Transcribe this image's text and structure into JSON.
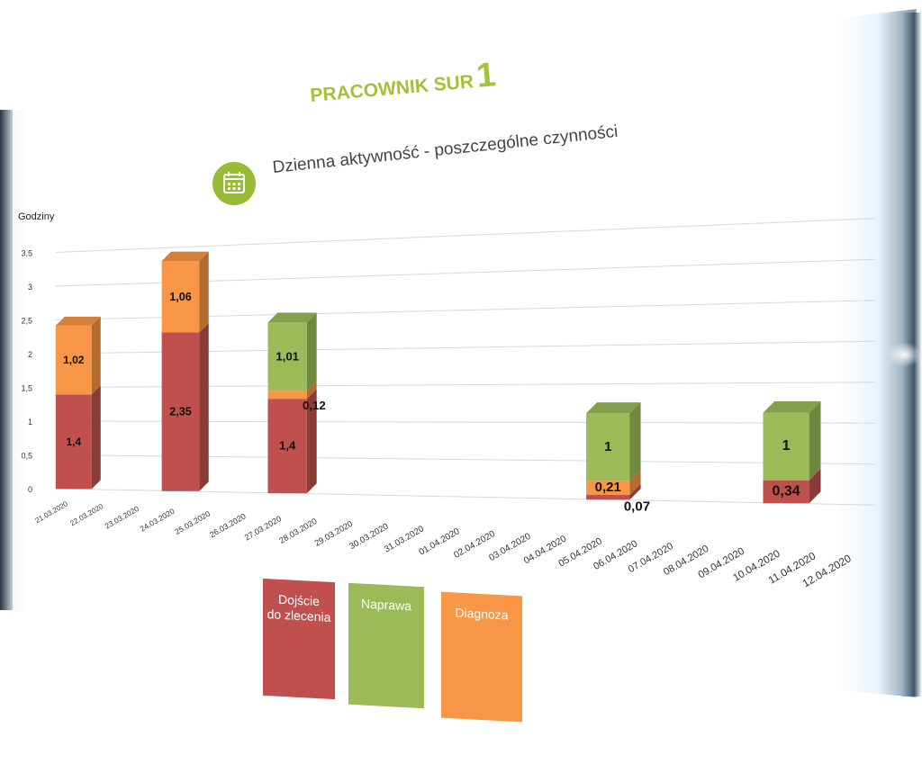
{
  "title": {
    "text": "PRACOWNIK SUR",
    "number": "1"
  },
  "subtitle": "Dzienna aktywność - poszczególne czynności",
  "chart_data": {
    "type": "bar",
    "stacked": true,
    "ylabel": "Godziny",
    "ylim": [
      0,
      3.5
    ],
    "yticks": [
      "0",
      "0,5",
      "1",
      "1,5",
      "2",
      "2,5",
      "3",
      "3,5"
    ],
    "categories": [
      "21.03.2020",
      "22.03.2020",
      "23.03.2020",
      "24.03.2020",
      "25.03.2020",
      "26.03.2020",
      "27.03.2020",
      "28.03.2020",
      "29.03.2020",
      "30.03.2020",
      "31.03.2020",
      "01.04.2020",
      "02.04.2020",
      "03.04.2020",
      "04.04.2020",
      "05.04.2020",
      "06.04.2020",
      "07.04.2020",
      "08.04.2020",
      "09.04.2020",
      "10.04.2020",
      "11.04.2020",
      "12.04.2020"
    ],
    "series": [
      {
        "name": "Dojście do zlecenia",
        "color": "#c0504d",
        "values": [
          1.4,
          0,
          0,
          2.35,
          0,
          0,
          1.4,
          0,
          0,
          0,
          0,
          0,
          0,
          0,
          0,
          0.07,
          0,
          0,
          0,
          0,
          0.34,
          0,
          0
        ],
        "labels": [
          "1,4",
          "",
          "",
          "2,35",
          "",
          "",
          "1,4",
          "",
          "",
          "",
          "",
          "",
          "",
          "",
          "",
          "0,07",
          "",
          "",
          "",
          "",
          "0,34",
          "",
          ""
        ]
      },
      {
        "name": "Diagnoza",
        "color": "#f79646",
        "values": [
          1.02,
          0,
          0,
          1.06,
          0,
          0,
          0.12,
          0,
          0,
          0,
          0,
          0,
          0,
          0,
          0,
          0.21,
          0,
          0,
          0,
          0,
          0,
          0,
          0
        ],
        "labels": [
          "1,02",
          "",
          "",
          "1,06",
          "",
          "",
          "0,12",
          "",
          "",
          "",
          "",
          "",
          "",
          "",
          "",
          "0,21",
          "",
          "",
          "",
          "",
          "",
          "",
          ""
        ]
      },
      {
        "name": "Naprawa",
        "color": "#9bbb59",
        "values": [
          0,
          0,
          0,
          0,
          0,
          0,
          1.01,
          0,
          0,
          0,
          0,
          0,
          0,
          0,
          0,
          1,
          0,
          0,
          0,
          0,
          1,
          0,
          0
        ],
        "labels": [
          "",
          "",
          "",
          "",
          "",
          "",
          "1,01",
          "",
          "",
          "",
          "",
          "",
          "",
          "",
          "",
          "1",
          "",
          "",
          "",
          "",
          "1",
          "",
          ""
        ]
      }
    ],
    "legend": [
      "Dojście\ndo zlecenia",
      "Naprawa",
      "Diagnoza"
    ],
    "legend_position": "bottom"
  }
}
